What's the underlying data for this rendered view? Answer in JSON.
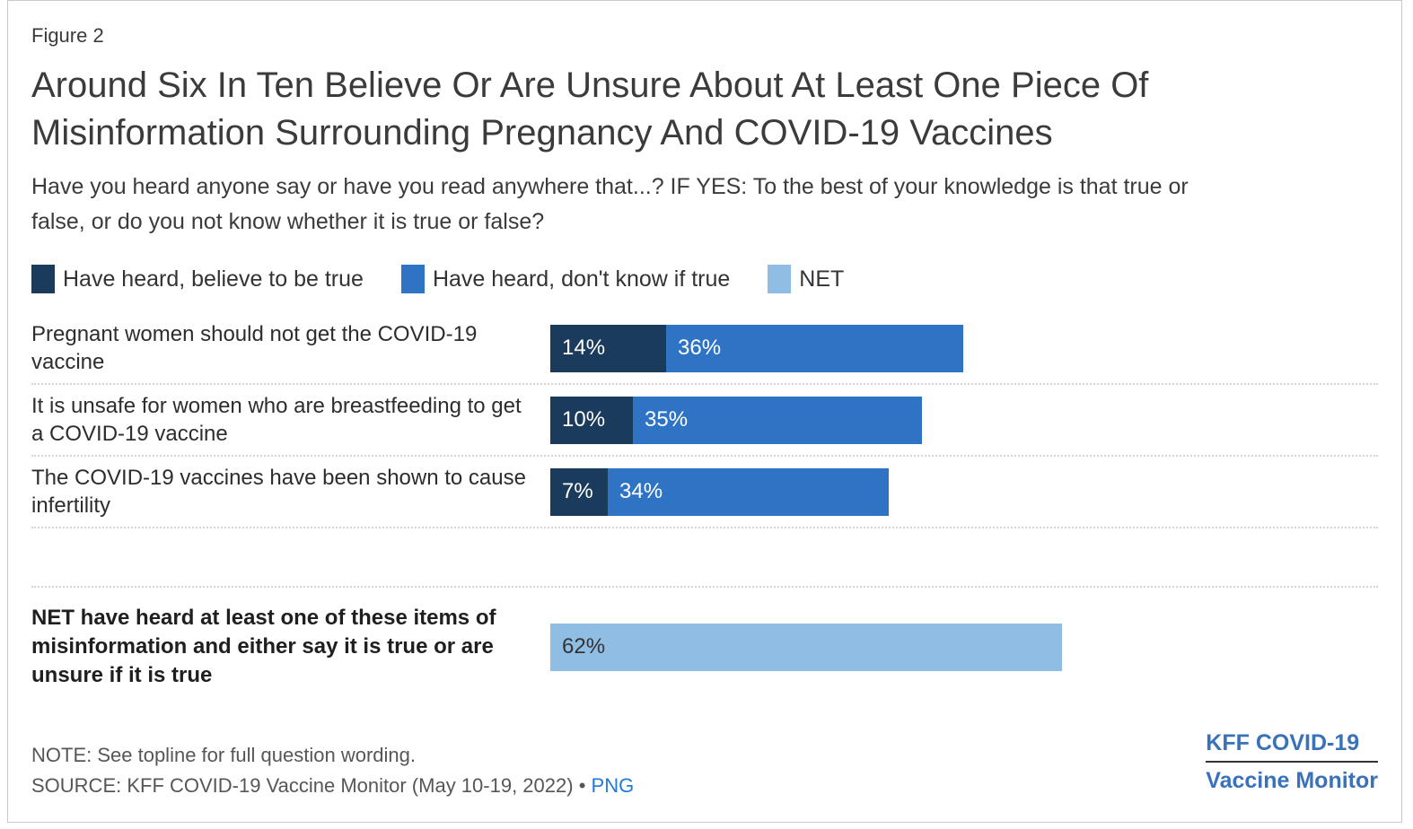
{
  "figure_label": "Figure 2",
  "title": "Around Six In Ten Believe Or Are Unsure About At Least One Piece Of\nMisinformation Surrounding Pregnancy And COVID-19 Vaccines",
  "subtitle": "Have you heard anyone say or have you read anywhere that...? IF YES: To the best of your knowledge is that true or\nfalse, or do you not know whether it is true or false?",
  "colors": {
    "believe_true": "#1a3b5c",
    "dont_know_true": "#2f74c4",
    "net": "#8fbde3",
    "value_label_light": "#ffffff",
    "value_label_dark": "#333333",
    "link": "#2279d8",
    "logo": "#3a72ba"
  },
  "legend": [
    {
      "label": "Have heard, believe to be true",
      "color": "#1a3b5c"
    },
    {
      "label": "Have heard, don't know if true",
      "color": "#2f74c4"
    },
    {
      "label": "NET",
      "color": "#8fbde3"
    }
  ],
  "chart_data": {
    "type": "bar",
    "orientation": "horizontal",
    "stacked": true,
    "unit": "percent",
    "xlim": [
      0,
      100
    ],
    "axes_hidden": true,
    "grid": false,
    "legend_position": "top",
    "categories": [
      "Pregnant women should not get the COVID-19 vaccine",
      "It is unsafe for women who are breastfeeding to get a COVID-19 vaccine",
      "The COVID-19 vaccines have been shown to cause infertility"
    ],
    "series": [
      {
        "name": "Have heard, believe to be true",
        "color": "#1a3b5c",
        "values": [
          14,
          10,
          7
        ]
      },
      {
        "name": "Have heard, don't know if true",
        "color": "#2f74c4",
        "values": [
          36,
          35,
          34
        ]
      }
    ],
    "data_labels": [
      [
        "14%",
        "36%"
      ],
      [
        "10%",
        "35%"
      ],
      [
        "7%",
        "34%"
      ]
    ],
    "net_row": {
      "label": "NET have heard at least one of these items of misinformation and either say it is true or are unsure if it is true",
      "value": 62,
      "data_label": "62%",
      "color": "#8fbde3"
    }
  },
  "footer": {
    "note": "NOTE: See topline for full question wording.",
    "source": "SOURCE: KFF COVID-19 Vaccine Monitor (May 10-19, 2022)",
    "source_separator": "•",
    "source_link": "PNG",
    "logo_line1": "KFF COVID-19",
    "logo_line2": "Vaccine Monitor"
  }
}
